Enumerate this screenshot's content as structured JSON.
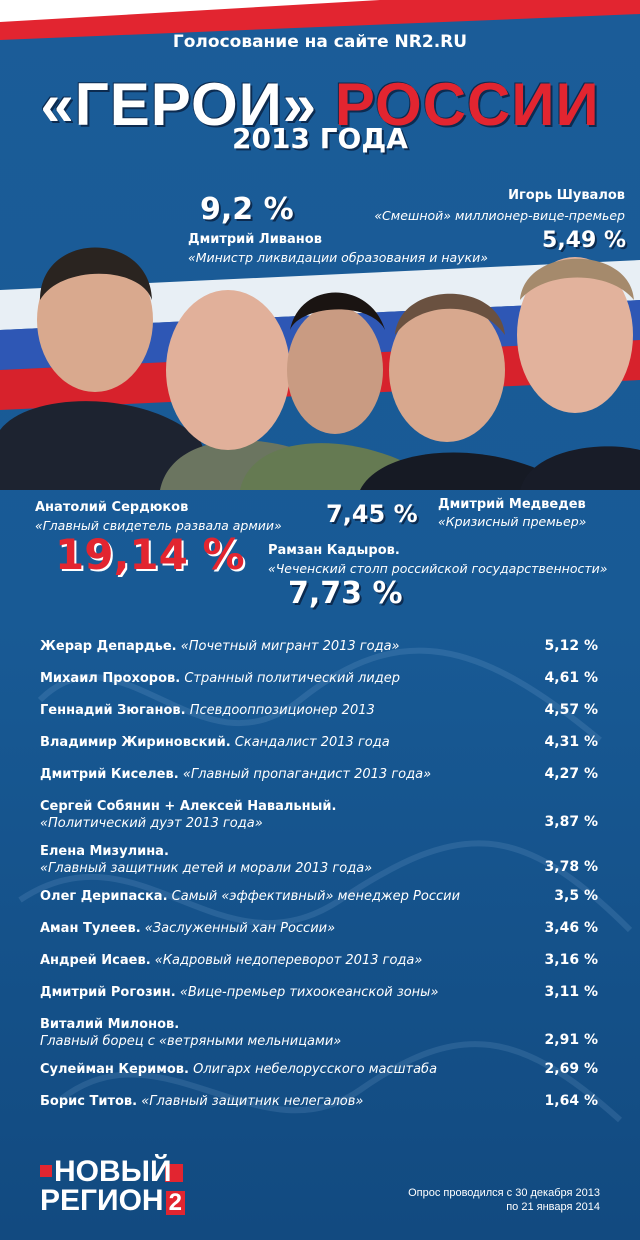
{
  "header": {
    "subtitle": "Голосование на сайте NR2.RU",
    "title_white": "«ГЕРОИ»",
    "title_red": "РОССИИ",
    "year": "2013 ГОДА"
  },
  "featured": [
    {
      "name": "Дмитрий Ливанов",
      "quote": "«Министр ликвидации образования и науки»",
      "percent": "9,2 %"
    },
    {
      "name": "Игорь Шувалов",
      "quote": "«Смешной» миллионер-вице-премьер",
      "percent": "5,49 %"
    },
    {
      "name": "Анатолий Сердюков",
      "quote": "«Главный свидетель развала армии»",
      "percent": "19,14 %"
    },
    {
      "name": "Дмитрий Медведев",
      "quote": "«Кризисный премьер»",
      "percent": "7,45 %"
    },
    {
      "name": "Рамзан Кадыров.",
      "quote": "«Чеченский столп российской государственности»",
      "percent": "7,73 %"
    }
  ],
  "rows": [
    {
      "name": "Жерар Депардье.",
      "description": "«Почетный мигрант 2013 года»",
      "percent": "5,12 %"
    },
    {
      "name": "Михаил Прохоров.",
      "description": "Странный политический лидер",
      "percent": "4,61 %"
    },
    {
      "name": "Геннадий Зюганов.",
      "description": "Псевдооппозиционер 2013",
      "percent": "4,57 %"
    },
    {
      "name": "Владимир Жириновский.",
      "description": "Скандалист 2013 года",
      "percent": "4,31 %"
    },
    {
      "name": "Дмитрий Киселев.",
      "description": "«Главный пропагандист 2013 года»",
      "percent": "4,27 %"
    },
    {
      "name": "Сергей Собянин + Алексей Навальный.",
      "description": "«Политический дуэт 2013 года»",
      "percent": "3,87 %"
    },
    {
      "name": "Елена Мизулина.",
      "description": "«Главный защитник детей и морали 2013 года»",
      "percent": "3,78 %"
    },
    {
      "name": "Олег Дерипаска.",
      "description": "Самый «эффективный» менеджер России",
      "percent": "3,5 %"
    },
    {
      "name": "Аман Тулеев.",
      "description": "«Заслуженный хан России»",
      "percent": "3,46 %"
    },
    {
      "name": "Андрей Исаев.",
      "description": "«Кадровый недопереворот 2013 года»",
      "percent": "3,16 %"
    },
    {
      "name": "Дмитрий Рогозин.",
      "description": "«Вице-премьер тихоокеанской зоны»",
      "percent": "3,11 %"
    },
    {
      "name": "Виталий Милонов.",
      "description": "Главный борец с «ветряными мельницами»",
      "percent": "2,91 %"
    },
    {
      "name": "Сулейман Керимов.",
      "description": "Олигарх небелорусского масштаба",
      "percent": "2,69 %"
    },
    {
      "name": "Борис Титов.",
      "description": "«Главный защитник нелегалов»",
      "percent": "1,64 %"
    }
  ],
  "footer": {
    "logo_line1": "НОВЫЙ",
    "logo_line2": "РЕГИОН",
    "logo_number": "2",
    "note_line1": "Опрос проводился с 30 декабря 2013",
    "note_line2": "по 21 января 2014"
  }
}
